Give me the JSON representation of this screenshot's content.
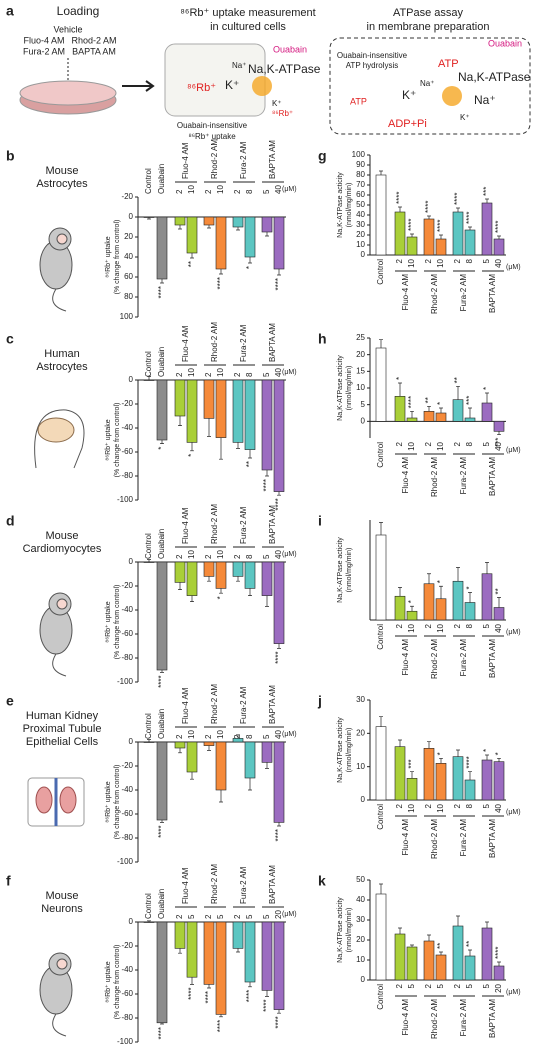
{
  "diagram": {
    "panel": "a",
    "loading": "Loading",
    "vehicle": "Vehicle",
    "dyes": [
      "Fluo-4 AM",
      "Rhod-2 AM",
      "Fura-2 AM",
      "BAPTA AM"
    ],
    "uptake_title": [
      "⁸⁶Rb⁺ uptake measurement",
      "in cultured cells"
    ],
    "uptake_ouabain": "Ouabain",
    "uptake_pump": "Na,K-ATPase",
    "uptake_rb_in": "⁸⁶Rb⁺",
    "uptake_na": "Na⁺",
    "uptake_k": "K⁺",
    "uptake_k2": "K⁺",
    "uptake_rb_out": "⁸⁶Rb⁺",
    "uptake_insensitive": [
      "Ouabain-insensitive",
      "⁸⁶Rb⁺ uptake"
    ],
    "atpase_title": [
      "ATPase assay",
      "in membrane preparation"
    ],
    "atpase_ouabain": "Ouabain",
    "atpase_atp": "ATP",
    "atpase_pump": "Na,K-ATPase",
    "atpase_insensitive": [
      "Ouabain-insensitive",
      "ATP hydrolysis"
    ],
    "atpase_k": "K⁺",
    "atpase_na": "Na⁺",
    "atpase_na2": "Na⁺",
    "atpase_k2": "K⁺",
    "atpase_atp2": "ATP",
    "atpase_adp": "ADP+Pi"
  },
  "chart_data": [
    {
      "type": "bar",
      "panel": "b",
      "title": [
        "Mouse",
        "Astrocytes"
      ],
      "ylabel": [
        "⁸⁶Rb⁺ uptake",
        "(% change from control)"
      ],
      "categories": [
        "Control",
        "Ouabain",
        "2",
        "10",
        "2",
        "10",
        "2",
        "8",
        "5",
        "40"
      ],
      "groups": [
        "Fluo-4 AM",
        "Rhod-2 AM",
        "Fura-2 AM",
        "BAPTA AM"
      ],
      "unit": "(μM)",
      "values": [
        0,
        62,
        8,
        36,
        8,
        52,
        10,
        40,
        15,
        52
      ],
      "errors": [
        2,
        4,
        4,
        5,
        3,
        5,
        3,
        6,
        4,
        6
      ],
      "significance": [
        null,
        "****",
        null,
        "**",
        null,
        "****",
        null,
        "*",
        null,
        "****"
      ],
      "colors": [
        "#ffffff",
        "#8c8c8c",
        "#a9cf38",
        "#a9cf38",
        "#f58a3a",
        "#f58a3a",
        "#5cc6c2",
        "#5cc6c2",
        "#9b6cc0",
        "#9b6cc0"
      ],
      "ylim": [
        100,
        -20
      ],
      "yticks": [
        -20,
        0,
        20,
        40,
        60,
        80,
        100
      ]
    },
    {
      "type": "bar",
      "panel": "g",
      "ylabel": [
        "Na,K-ATPase acticity",
        "(nmol/mg/min)"
      ],
      "categories": [
        "Control",
        "2",
        "10",
        "2",
        "10",
        "2",
        "8",
        "5",
        "40"
      ],
      "groups": [
        "Fluo-4 AM",
        "Rhod-2 AM",
        "Fura-2 AM",
        "BAPTA AM"
      ],
      "unit": "(μM)",
      "values": [
        80,
        43,
        18,
        36,
        16,
        43,
        25,
        52,
        16
      ],
      "errors": [
        4,
        5,
        3,
        3,
        4,
        4,
        3,
        4,
        3
      ],
      "significance": [
        null,
        "****",
        "****",
        "****",
        "****",
        "****",
        "****",
        "***",
        "****"
      ],
      "colors": [
        "#ffffff",
        "#a9cf38",
        "#a9cf38",
        "#f58a3a",
        "#f58a3a",
        "#5cc6c2",
        "#5cc6c2",
        "#9b6cc0",
        "#9b6cc0"
      ],
      "ylim": [
        0,
        100
      ],
      "yticks": [
        0,
        10,
        20,
        30,
        40,
        50,
        60,
        70,
        80,
        90,
        100
      ]
    },
    {
      "type": "bar",
      "panel": "c",
      "title": [
        "Human",
        "Astrocytes"
      ],
      "ylabel": [
        "⁸⁶Rb⁺ uptake",
        "(% change from control)"
      ],
      "categories": [
        "Control",
        "Ouabain",
        "2",
        "10",
        "2",
        "10",
        "2",
        "8",
        "5",
        "40"
      ],
      "groups": [
        "Fluo-4 AM",
        "Rhod-2 AM",
        "Fura-2 AM",
        "BAPTA AM"
      ],
      "unit": "(μM)",
      "values": [
        0,
        -50,
        -30,
        -52,
        -32,
        -48,
        -52,
        -58,
        -75,
        -93
      ],
      "errors": [
        3,
        3,
        8,
        7,
        15,
        18,
        5,
        7,
        5,
        3
      ],
      "significance": [
        null,
        "*",
        null,
        "*",
        null,
        null,
        null,
        "**",
        "****",
        "****"
      ],
      "colors": [
        "#ffffff",
        "#8c8c8c",
        "#a9cf38",
        "#a9cf38",
        "#f58a3a",
        "#f58a3a",
        "#5cc6c2",
        "#5cc6c2",
        "#9b6cc0",
        "#9b6cc0"
      ],
      "ylim": [
        -100,
        0
      ],
      "yticks": [
        0,
        -20,
        -40,
        -60,
        -80,
        -100
      ]
    },
    {
      "type": "bar",
      "panel": "h",
      "ylabel": [
        "Na,K-ATPase acticity",
        "(nmol/mg/min)"
      ],
      "categories": [
        "Control",
        "2",
        "10",
        "2",
        "10",
        "2",
        "8",
        "5",
        "40"
      ],
      "groups": [
        "Fluo-4 AM",
        "Rhod-2 AM",
        "Fura-2 AM",
        "BAPTA AM"
      ],
      "unit": "(μM)",
      "values": [
        22,
        7.5,
        1,
        3,
        2.5,
        6.5,
        1,
        5.5,
        -3
      ],
      "errors": [
        2.5,
        4,
        2,
        1.5,
        1.5,
        4,
        3,
        3,
        1
      ],
      "significance": [
        null,
        "*",
        "****",
        "**",
        "*",
        "**",
        "***",
        "*",
        "***"
      ],
      "colors": [
        "#ffffff",
        "#a9cf38",
        "#a9cf38",
        "#f58a3a",
        "#f58a3a",
        "#5cc6c2",
        "#5cc6c2",
        "#9b6cc0",
        "#9b6cc0"
      ],
      "ylim": [
        -5,
        25
      ],
      "yticks": [
        0,
        5,
        10,
        15,
        20,
        25
      ]
    },
    {
      "type": "bar",
      "panel": "d",
      "title": [
        "Mouse",
        "Cardiomyocytes"
      ],
      "ylabel": [
        "⁸⁶Rb⁺ uptake",
        "(% change from control)"
      ],
      "categories": [
        "Control",
        "Ouabain",
        "2",
        "10",
        "2",
        "10",
        "2",
        "8",
        "5",
        "40"
      ],
      "groups": [
        "Fluo-4 AM",
        "Rhod-2 AM",
        "Fura-2 AM",
        "BAPTA AM"
      ],
      "unit": "(μM)",
      "values": [
        0,
        -90,
        -17,
        -28,
        -12,
        -22,
        -12,
        -22,
        -28,
        -68
      ],
      "errors": [
        2,
        2,
        6,
        5,
        4,
        4,
        4,
        6,
        9,
        4
      ],
      "significance": [
        null,
        "****",
        null,
        null,
        null,
        "*",
        null,
        null,
        null,
        "****"
      ],
      "colors": [
        "#ffffff",
        "#8c8c8c",
        "#a9cf38",
        "#a9cf38",
        "#f58a3a",
        "#f58a3a",
        "#5cc6c2",
        "#5cc6c2",
        "#9b6cc0",
        "#9b6cc0"
      ],
      "ylim": [
        -100,
        0
      ],
      "yticks": [
        0,
        -20,
        -40,
        -60,
        -80,
        -100
      ]
    },
    {
      "type": "bar",
      "panel": "i",
      "ylabel": [
        "Na,K-ATPase acticity",
        "(nmol/mg/min)"
      ],
      "categories": [
        "Control",
        "2",
        "10",
        "2",
        "10",
        "2",
        "8",
        "5",
        "40"
      ],
      "groups": [
        "Fluo-4 AM",
        "Rhod-2 AM",
        "Fura-2 AM",
        "BAPTA AM"
      ],
      "unit": "(μM)",
      "values": [
        68,
        19,
        7,
        29,
        17,
        31,
        14,
        37,
        10
      ],
      "errors": [
        10,
        7,
        4,
        8,
        10,
        11,
        8,
        9,
        8
      ],
      "significance": [
        null,
        null,
        "*",
        null,
        "*",
        null,
        "*",
        null,
        "**"
      ],
      "colors": [
        "#ffffff",
        "#a9cf38",
        "#a9cf38",
        "#f58a3a",
        "#f58a3a",
        "#5cc6c2",
        "#5cc6c2",
        "#9b6cc0",
        "#9b6cc0"
      ],
      "ylim": [
        0,
        80
      ]
    },
    {
      "type": "bar",
      "panel": "e",
      "title": [
        "Human Kidney",
        "Proximal Tubule",
        "Epithelial Cells"
      ],
      "ylabel": [
        "⁸⁶Rb⁺ uptake",
        "(% change from control)"
      ],
      "categories": [
        "Control",
        "Ouabain",
        "2",
        "10",
        "2",
        "10",
        "2",
        "8",
        "5",
        "40"
      ],
      "groups": [
        "Fluo-4 AM",
        "Rhod-2 AM",
        "Fura-2 AM",
        "BAPTA AM"
      ],
      "unit": "(μM)",
      "values": [
        0,
        -65,
        -5,
        -25,
        -3,
        -40,
        3,
        -30,
        -17,
        -67
      ],
      "errors": [
        2,
        2,
        4,
        6,
        4,
        10,
        3,
        10,
        5,
        3
      ],
      "significance": [
        null,
        "****",
        null,
        null,
        null,
        null,
        null,
        null,
        null,
        "****"
      ],
      "colors": [
        "#ffffff",
        "#8c8c8c",
        "#a9cf38",
        "#a9cf38",
        "#f58a3a",
        "#f58a3a",
        "#5cc6c2",
        "#5cc6c2",
        "#9b6cc0",
        "#9b6cc0"
      ],
      "ylim": [
        -100,
        0
      ],
      "yticks": [
        0,
        -20,
        -40,
        -60,
        -80,
        -100
      ]
    },
    {
      "type": "bar",
      "panel": "j",
      "ylabel": [
        "Na,K-ATPase acticity",
        "(nmol/mg/min)"
      ],
      "categories": [
        "Control",
        "2",
        "10",
        "2",
        "10",
        "2",
        "8",
        "5",
        "40"
      ],
      "groups": [
        "Fluo-4 AM",
        "Rhod-2 AM",
        "Fura-2 AM",
        "BAPTA AM"
      ],
      "unit": "(μM)",
      "values": [
        22,
        16,
        6.5,
        15.5,
        11,
        13,
        6,
        12,
        11.5
      ],
      "errors": [
        3,
        2,
        2,
        2,
        1.5,
        2,
        2.5,
        1.5,
        1
      ],
      "significance": [
        null,
        null,
        "***",
        null,
        "*",
        null,
        "****",
        "*",
        "*"
      ],
      "colors": [
        "#ffffff",
        "#a9cf38",
        "#a9cf38",
        "#f58a3a",
        "#f58a3a",
        "#5cc6c2",
        "#5cc6c2",
        "#9b6cc0",
        "#9b6cc0"
      ],
      "ylim": [
        0,
        30
      ],
      "yticks": [
        0,
        10,
        20,
        30
      ]
    },
    {
      "type": "bar",
      "panel": "f",
      "title": [
        "Mouse",
        "Neurons"
      ],
      "ylabel": [
        "⁸⁶Rb⁺ uptake",
        "(% change from control)"
      ],
      "categories": [
        "Control",
        "Ouabain",
        "2",
        "5",
        "2",
        "5",
        "2",
        "5",
        "5",
        "20"
      ],
      "groups": [
        "Fluo-4 AM",
        "Rhod-2 AM",
        "Fura-2 AM",
        "BAPTA AM"
      ],
      "unit": "(μM)",
      "values": [
        0,
        -84,
        -22,
        -46,
        -52,
        -77,
        -22,
        -50,
        -57,
        -73
      ],
      "errors": [
        1,
        1,
        4,
        6,
        3,
        2,
        3,
        4,
        5,
        3
      ],
      "significance": [
        null,
        "****",
        null,
        "****",
        "****",
        "****",
        null,
        "****",
        "****",
        "****"
      ],
      "colors": [
        "#ffffff",
        "#8c8c8c",
        "#a9cf38",
        "#a9cf38",
        "#f58a3a",
        "#f58a3a",
        "#5cc6c2",
        "#5cc6c2",
        "#9b6cc0",
        "#9b6cc0"
      ],
      "ylim": [
        -100,
        0
      ],
      "yticks": [
        0,
        -20,
        -40,
        -60,
        -80,
        -100
      ]
    },
    {
      "type": "bar",
      "panel": "k",
      "ylabel": [
        "Na,K-ATPase acticity",
        "(nmol/mg/min)"
      ],
      "categories": [
        "Control",
        "2",
        "5",
        "2",
        "5",
        "2",
        "5",
        "5",
        "20"
      ],
      "groups": [
        "Fluo-4 AM",
        "Rhod-2 AM",
        "Fura-2 AM",
        "BAPTA AM"
      ],
      "unit": "(μM)",
      "values": [
        43,
        23,
        16.5,
        19.5,
        12.5,
        27,
        12,
        26,
        7
      ],
      "errors": [
        5,
        3,
        1,
        3,
        1.5,
        5,
        3,
        3,
        2
      ],
      "significance": [
        null,
        null,
        null,
        null,
        "**",
        null,
        "**",
        null,
        "****"
      ],
      "colors": [
        "#ffffff",
        "#a9cf38",
        "#a9cf38",
        "#f58a3a",
        "#f58a3a",
        "#5cc6c2",
        "#5cc6c2",
        "#9b6cc0",
        "#9b6cc0"
      ],
      "ylim": [
        0,
        50
      ],
      "yticks": [
        0,
        10,
        20,
        30,
        40,
        50
      ]
    }
  ]
}
